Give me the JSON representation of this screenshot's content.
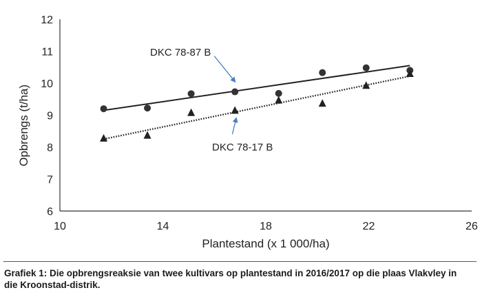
{
  "chart_data": {
    "type": "scatter",
    "xlabel": "Plantestand (x 1 000/ha)",
    "ylabel": "Opbrengs (t/ha)",
    "xlim": [
      10,
      26
    ],
    "ylim": [
      6,
      12
    ],
    "xticks": [
      10,
      14,
      18,
      22,
      26
    ],
    "yticks": [
      6,
      7,
      8,
      9,
      10,
      11,
      12
    ],
    "grid": false,
    "series": [
      {
        "name": "DKC 78-87 B",
        "marker": "circle",
        "color": "#333333",
        "x": [
          11.7,
          13.4,
          15.1,
          16.8,
          18.5,
          20.2,
          21.9,
          23.6
        ],
        "y": [
          9.2,
          9.22,
          9.67,
          9.73,
          9.68,
          10.33,
          10.48,
          10.4
        ],
        "trendline": {
          "style": "solid",
          "from": [
            11.7,
            9.15
          ],
          "to": [
            23.6,
            10.55
          ]
        }
      },
      {
        "name": "DKC 78-17 B",
        "marker": "triangle",
        "color": "#222222",
        "x": [
          11.7,
          13.4,
          15.1,
          16.8,
          18.5,
          20.2,
          21.9,
          23.6
        ],
        "y": [
          8.28,
          8.37,
          9.08,
          9.15,
          9.47,
          9.37,
          9.93,
          10.3
        ],
        "trendline": {
          "style": "dotted",
          "from": [
            11.7,
            8.25
          ],
          "to": [
            23.6,
            10.22
          ]
        }
      }
    ],
    "annotations": [
      {
        "text": "DKC 78-87 B",
        "arrow_color": "#4a7ebb",
        "arrow_from": [
          16.0,
          10.85
        ],
        "arrow_to": [
          16.8,
          10.05
        ]
      },
      {
        "text": "DKC 78-17 B",
        "arrow_color": "#4a7ebb",
        "arrow_from": [
          16.7,
          8.4
        ],
        "arrow_to": [
          16.85,
          8.9
        ]
      }
    ]
  },
  "caption": "Grafiek 1: Die opbrengsreaksie van twee kultivars op plantestand in 2016/2017 op die plaas Vlakvley in die Kroonstad-distrik."
}
